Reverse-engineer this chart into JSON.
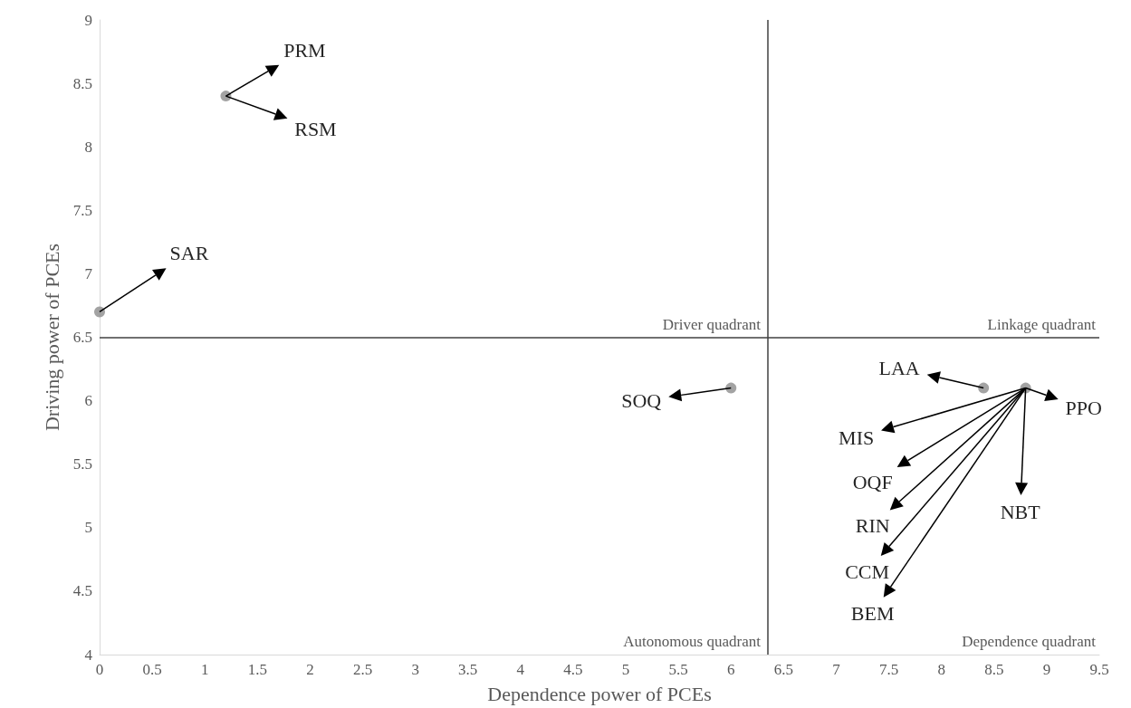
{
  "chart_data": {
    "type": "scatter",
    "xlabel": "Dependence power of PCEs",
    "ylabel": "Driving power of PCEs",
    "x": [
      0,
      1.2,
      6,
      8.4,
      8.8
    ],
    "values": [
      6.7,
      8.4,
      6.1,
      6.1,
      6.1
    ],
    "color": "#8c8c8c",
    "marker": "circle",
    "grid": false,
    "xlim": [
      0,
      9.5
    ],
    "xticks": [
      0,
      0.5,
      1,
      1.5,
      2,
      2.5,
      3,
      3.5,
      4,
      4.5,
      5,
      5.5,
      6,
      6.5,
      7,
      7.5,
      8,
      8.5,
      9,
      9.5
    ],
    "ylim": [
      4,
      9
    ],
    "yticks": [
      4,
      4.5,
      5,
      5.5,
      6,
      6.5,
      7,
      7.5,
      8,
      8.5,
      9
    ],
    "ref_lines": [
      {
        "axis": "x",
        "value": 6.35,
        "color": "#404040"
      },
      {
        "axis": "y",
        "value": 6.5,
        "color": "#404040"
      }
    ],
    "annotations": [
      "Driver quadrant",
      "Linkage quadrant",
      "Autonomous quadrant",
      "Dependence quadrant",
      {
        "text": "PRM",
        "x": 1.2,
        "y": 8.4
      },
      {
        "text": "RSM",
        "x": 1.2,
        "y": 8.4
      },
      {
        "text": "SAR",
        "x": 0,
        "y": 6.7
      },
      {
        "text": "SOQ",
        "x": 6,
        "y": 6.1
      },
      {
        "text": "LAA",
        "x": 8.4,
        "y": 6.1
      },
      {
        "text": "MIS",
        "x": 8.8,
        "y": 6.1
      },
      {
        "text": "OQF",
        "x": 8.8,
        "y": 6.1
      },
      {
        "text": "RIN",
        "x": 8.8,
        "y": 6.1
      },
      {
        "text": "CCM",
        "x": 8.8,
        "y": 6.1
      },
      {
        "text": "BEM",
        "x": 8.8,
        "y": 6.1
      },
      {
        "text": "NBT",
        "x": 8.8,
        "y": 6.1
      },
      {
        "text": "PPO",
        "x": 8.8,
        "y": 6.1
      }
    ]
  }
}
